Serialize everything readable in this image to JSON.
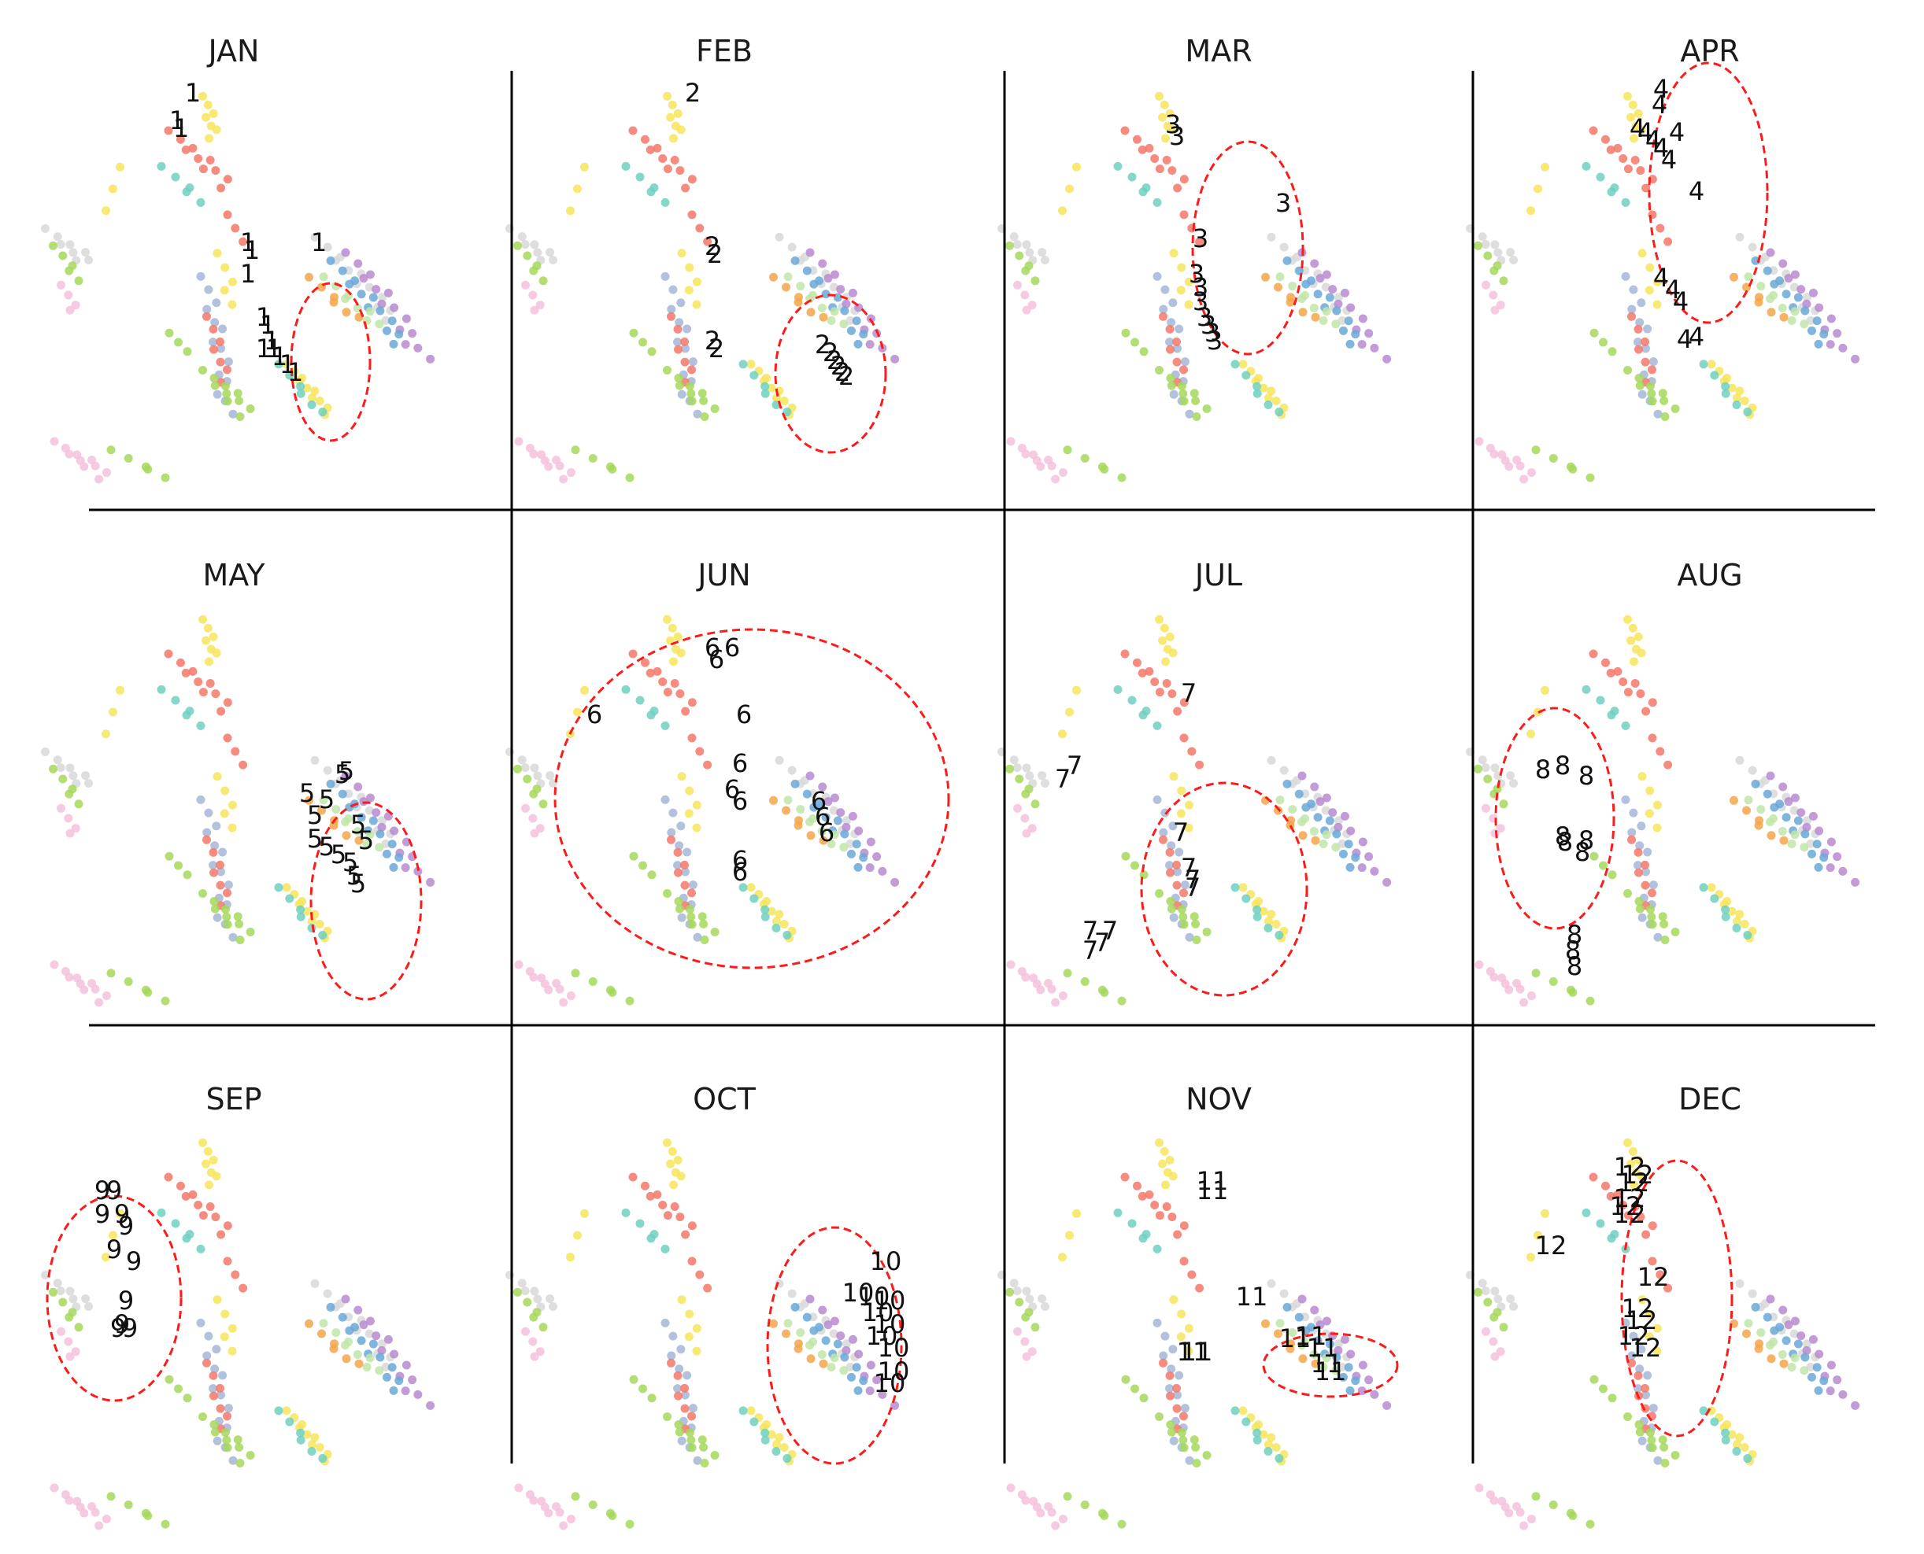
{
  "chart_data": {
    "type": "scatter",
    "title": "",
    "xlabel": "",
    "ylabel": "",
    "axes_visible": false,
    "grid": false,
    "layout": "3 rows x 4 columns of small multiples",
    "background_palette": [
      "#f7e45c",
      "#f4786a",
      "#6fd0c0",
      "#a4b6d8",
      "#a6d85c",
      "#f4a64a",
      "#b78ad0",
      "#d8d8d8",
      "#f5c1dc",
      "#bfe5a8",
      "#6aa8d8"
    ],
    "label_color": "#111111",
    "highlight_color": "#ff1a1a",
    "panels": [
      {
        "title": "JAN",
        "label": "1",
        "highlighted_region": "lower-middle right cluster"
      },
      {
        "title": "FEB",
        "label": "2",
        "highlighted_region": "lower-middle right cluster"
      },
      {
        "title": "MAR",
        "label": "3",
        "highlighted_region": "central vertical strand"
      },
      {
        "title": "APR",
        "label": "4",
        "highlighted_region": "upper central strand"
      },
      {
        "title": "MAY",
        "label": "5",
        "highlighted_region": "right cluster"
      },
      {
        "title": "JUN",
        "label": "6",
        "highlighted_region": "broad central area"
      },
      {
        "title": "JUL",
        "label": "7",
        "highlighted_region": "lower left-center"
      },
      {
        "title": "AUG",
        "label": "8",
        "highlighted_region": "left grey cluster"
      },
      {
        "title": "SEP",
        "label": "9",
        "highlighted_region": "far left"
      },
      {
        "title": "OCT",
        "label": "10",
        "highlighted_region": "right cluster"
      },
      {
        "title": "NOV",
        "label": "11",
        "highlighted_region": "right cluster band"
      },
      {
        "title": "DEC",
        "label": "12",
        "highlighted_region": "upper central strand"
      }
    ]
  }
}
